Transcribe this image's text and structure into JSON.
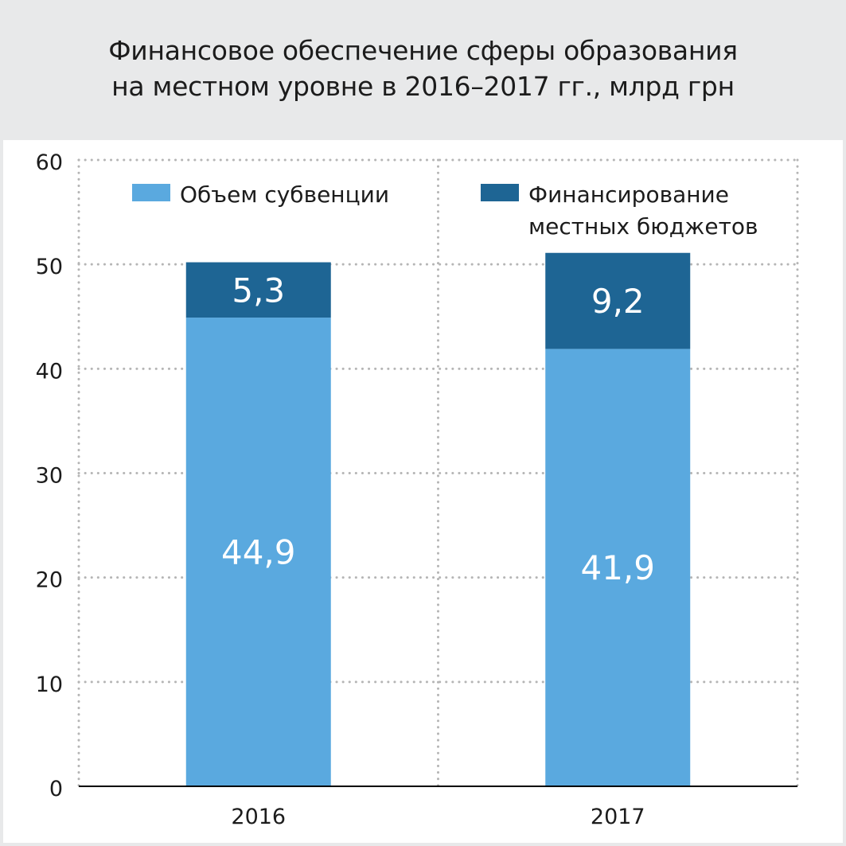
{
  "title": {
    "line1": "Финансовое обеспечение сферы образования",
    "line2": "на местном уровне в 2016–2017 гг., млрд грн"
  },
  "colors": {
    "subvention": "#5aa9df",
    "local_budgets": "#1e6594",
    "grid": "#b5b5b5",
    "axis": "#000000",
    "page_bg": "#e8e9ea",
    "panel_bg": "#ffffff"
  },
  "chart_data": {
    "type": "bar",
    "stacked": true,
    "title": "Финансовое обеспечение сферы образования на местном уровне в 2016–2017 гг., млрд грн",
    "categories": [
      "2016",
      "2017"
    ],
    "series": [
      {
        "name": "Объем субвенции",
        "values": [
          44.9,
          41.9
        ],
        "labels": [
          "44,9",
          "41,9"
        ]
      },
      {
        "name": "Финансирование местных бюджетов",
        "values": [
          5.3,
          9.2
        ],
        "labels": [
          "5,3",
          "9,2"
        ]
      }
    ],
    "legend_lines": [
      [
        "Объем субвенции"
      ],
      [
        "Финансирование",
        "местных бюджетов"
      ]
    ],
    "yticks": [
      0,
      10,
      20,
      30,
      40,
      50,
      60
    ],
    "ylim": [
      0,
      60
    ],
    "xlabel": "",
    "ylabel": "",
    "grid": true,
    "legend_position": "top"
  }
}
